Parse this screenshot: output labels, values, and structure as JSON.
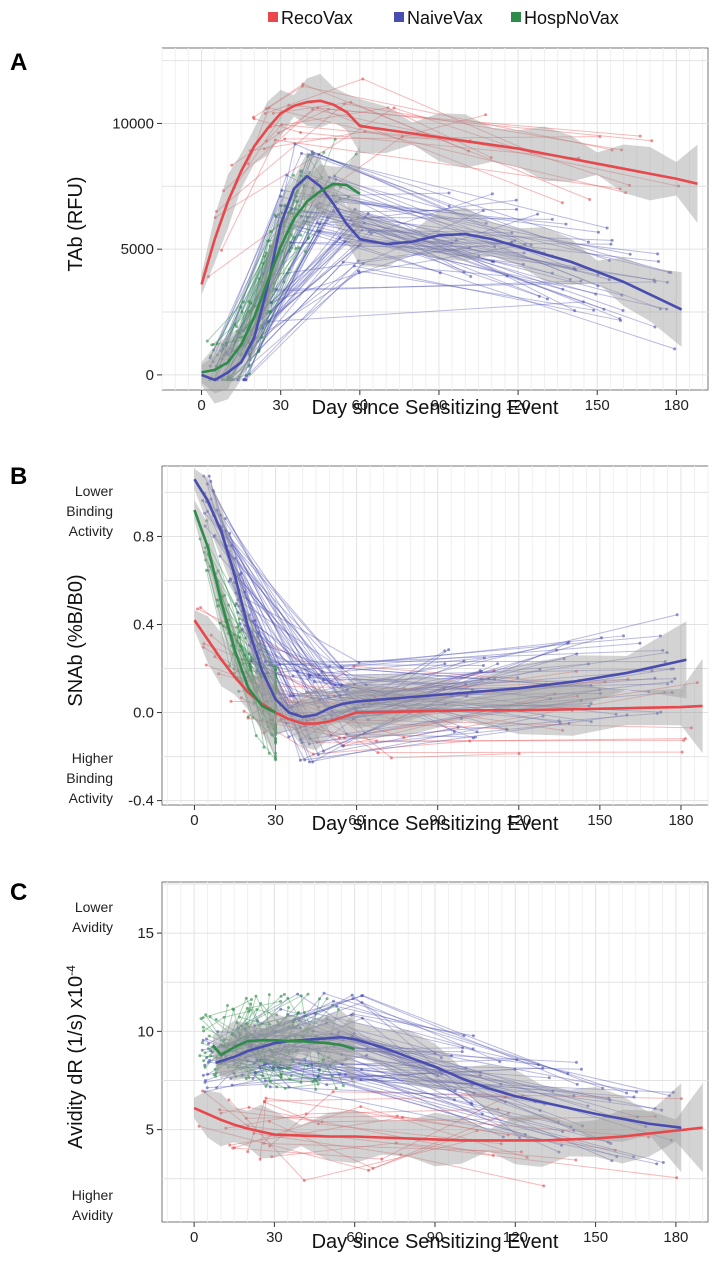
{
  "legend": [
    {
      "label": "RecoVax",
      "color": "#e8474b"
    },
    {
      "label": "NaiveVax",
      "color": "#4a4db0"
    },
    {
      "label": "HospNoVax",
      "color": "#2e8b4a"
    }
  ],
  "colors": {
    "band": "#9e9e9e",
    "grid_major": "#e2e2e2",
    "grid_minor": "#f0f0f0"
  },
  "chart_data": [
    {
      "panel": "A",
      "type": "line",
      "xlabel": "Day since Sensitizing Event",
      "ylabel": "TAb (RFU)",
      "xlim": [
        -15,
        192
      ],
      "ylim": [
        -600,
        13000
      ],
      "xticks": [
        0,
        30,
        60,
        90,
        120,
        150,
        180
      ],
      "yticks": [
        0,
        5000,
        10000
      ],
      "ytick_labels": [
        "0",
        "5000",
        "10000"
      ],
      "annotations_top": "",
      "annotations_bottom": "",
      "grid": true,
      "series": [
        {
          "name": "RecoVax",
          "x": [
            0,
            5,
            10,
            15,
            20,
            25,
            30,
            35,
            40,
            45,
            50,
            55,
            60,
            70,
            80,
            90,
            100,
            110,
            120,
            130,
            140,
            150,
            160,
            170,
            180,
            188
          ],
          "y": [
            3600,
            5400,
            6900,
            8100,
            9100,
            9800,
            10400,
            10700,
            10850,
            10900,
            10750,
            10450,
            9900,
            9750,
            9600,
            9450,
            9300,
            9150,
            9000,
            8800,
            8600,
            8400,
            8200,
            8000,
            7800,
            7600
          ]
        },
        {
          "name": "NaiveVax",
          "x": [
            0,
            5,
            10,
            15,
            20,
            25,
            30,
            35,
            40,
            45,
            50,
            55,
            60,
            70,
            80,
            90,
            100,
            110,
            120,
            130,
            140,
            150,
            160,
            170,
            182
          ],
          "y": [
            0,
            -200,
            100,
            500,
            1500,
            3500,
            6000,
            7400,
            7900,
            7500,
            6800,
            6000,
            5400,
            5200,
            5300,
            5550,
            5600,
            5400,
            5100,
            4800,
            4500,
            4100,
            3700,
            3200,
            2600
          ]
        },
        {
          "name": "HospNoVax",
          "x": [
            0,
            5,
            10,
            15,
            20,
            25,
            30,
            35,
            40,
            45,
            50,
            55,
            60
          ],
          "y": [
            100,
            200,
            500,
            1200,
            2300,
            3700,
            5100,
            6200,
            6900,
            7300,
            7600,
            7550,
            7200
          ]
        }
      ]
    },
    {
      "panel": "B",
      "type": "line",
      "xlabel": "Day since Sensitizing Event",
      "ylabel": "SNAb (%B/B0)",
      "xlim": [
        -12,
        190
      ],
      "ylim": [
        -0.42,
        1.12
      ],
      "xticks": [
        0,
        30,
        60,
        90,
        120,
        150,
        180
      ],
      "yticks": [
        -0.4,
        0.0,
        0.4,
        0.8
      ],
      "ytick_labels": [
        "-0.4",
        "0.0",
        "0.4",
        "0.8"
      ],
      "annotations_top": [
        "Lower",
        "Binding",
        "Activity"
      ],
      "annotations_bottom": [
        "Higher",
        "Binding",
        "Activity"
      ],
      "grid": true,
      "series": [
        {
          "name": "RecoVax",
          "x": [
            0,
            5,
            10,
            15,
            20,
            25,
            30,
            35,
            40,
            45,
            50,
            55,
            60,
            80,
            100,
            120,
            140,
            160,
            180,
            188
          ],
          "y": [
            0.42,
            0.33,
            0.24,
            0.16,
            0.09,
            0.04,
            0.0,
            -0.03,
            -0.05,
            -0.05,
            -0.04,
            -0.02,
            0.0,
            0.005,
            0.01,
            0.01,
            0.015,
            0.02,
            0.025,
            0.03
          ]
        },
        {
          "name": "NaiveVax",
          "x": [
            0,
            5,
            10,
            15,
            20,
            25,
            30,
            35,
            40,
            45,
            50,
            55,
            60,
            80,
            100,
            120,
            140,
            160,
            182
          ],
          "y": [
            1.06,
            0.96,
            0.82,
            0.62,
            0.38,
            0.19,
            0.06,
            0.0,
            -0.02,
            -0.01,
            0.02,
            0.04,
            0.05,
            0.07,
            0.09,
            0.11,
            0.14,
            0.18,
            0.24
          ]
        },
        {
          "name": "HospNoVax",
          "x": [
            0,
            5,
            10,
            15,
            20,
            25,
            30
          ],
          "y": [
            0.92,
            0.75,
            0.5,
            0.28,
            0.11,
            0.03,
            0.0
          ]
        }
      ]
    },
    {
      "panel": "C",
      "type": "line",
      "xlabel": "Day since Sensitizing Event",
      "ylabel": "Avidity dR (1/s) x10",
      "ylabel_superscript": "-4",
      "xlim": [
        -12,
        192
      ],
      "ylim": [
        0.3,
        17.6
      ],
      "xticks": [
        0,
        30,
        60,
        90,
        120,
        150,
        180
      ],
      "yticks": [
        5,
        10,
        15
      ],
      "ytick_labels": [
        "5",
        "10",
        "15"
      ],
      "annotations_top": [
        "Lower",
        "Avidity"
      ],
      "annotations_bottom": [
        "Higher",
        "Avidity"
      ],
      "grid": true,
      "series": [
        {
          "name": "RecoVax",
          "x": [
            0,
            5,
            10,
            15,
            20,
            25,
            30,
            40,
            50,
            60,
            70,
            80,
            90,
            100,
            110,
            120,
            130,
            140,
            150,
            160,
            170,
            180,
            190
          ],
          "y": [
            6.1,
            5.8,
            5.5,
            5.25,
            5.05,
            4.9,
            4.75,
            4.7,
            4.65,
            4.65,
            4.6,
            4.55,
            4.5,
            4.45,
            4.45,
            4.45,
            4.45,
            4.5,
            4.55,
            4.65,
            4.8,
            4.95,
            5.1
          ]
        },
        {
          "name": "NaiveVax",
          "x": [
            8,
            15,
            20,
            25,
            30,
            35,
            40,
            45,
            50,
            55,
            60,
            70,
            80,
            90,
            100,
            110,
            120,
            130,
            140,
            150,
            160,
            170,
            182
          ],
          "y": [
            8.4,
            8.7,
            9.0,
            9.2,
            9.4,
            9.5,
            9.55,
            9.6,
            9.65,
            9.7,
            9.6,
            9.2,
            8.7,
            8.2,
            7.6,
            7.1,
            6.7,
            6.4,
            6.1,
            5.8,
            5.55,
            5.3,
            5.1
          ]
        },
        {
          "name": "HospNoVax",
          "x": [
            7,
            10,
            15,
            20,
            25,
            30,
            35,
            40,
            45,
            50,
            55,
            60
          ],
          "y": [
            9.3,
            8.8,
            9.2,
            9.5,
            9.55,
            9.55,
            9.5,
            9.5,
            9.45,
            9.4,
            9.3,
            9.1
          ]
        }
      ]
    }
  ]
}
